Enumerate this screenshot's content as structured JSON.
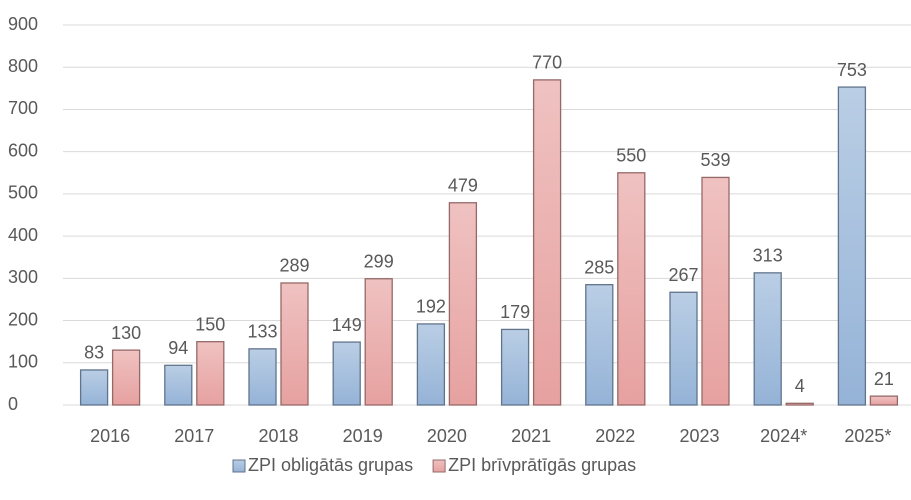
{
  "chart_data": {
    "type": "bar",
    "categories": [
      "2016",
      "2017",
      "2018",
      "2019",
      "2020",
      "2021",
      "2022",
      "2023",
      "2024*",
      "2025*"
    ],
    "series": [
      {
        "name": "ZPI obligātās grupas",
        "color": "#95b3d7",
        "values": [
          83,
          94,
          133,
          149,
          192,
          179,
          285,
          267,
          313,
          753
        ]
      },
      {
        "name": "ZPI brīvprātīgās grupas",
        "color": "#e6a1a0",
        "values": [
          130,
          150,
          289,
          299,
          479,
          770,
          550,
          539,
          4,
          21
        ]
      }
    ],
    "ylim": [
      0,
      900
    ],
    "yticks": [
      0,
      100,
      200,
      300,
      400,
      500,
      600,
      700,
      800,
      900
    ],
    "grid": true,
    "legend": "bottom"
  }
}
